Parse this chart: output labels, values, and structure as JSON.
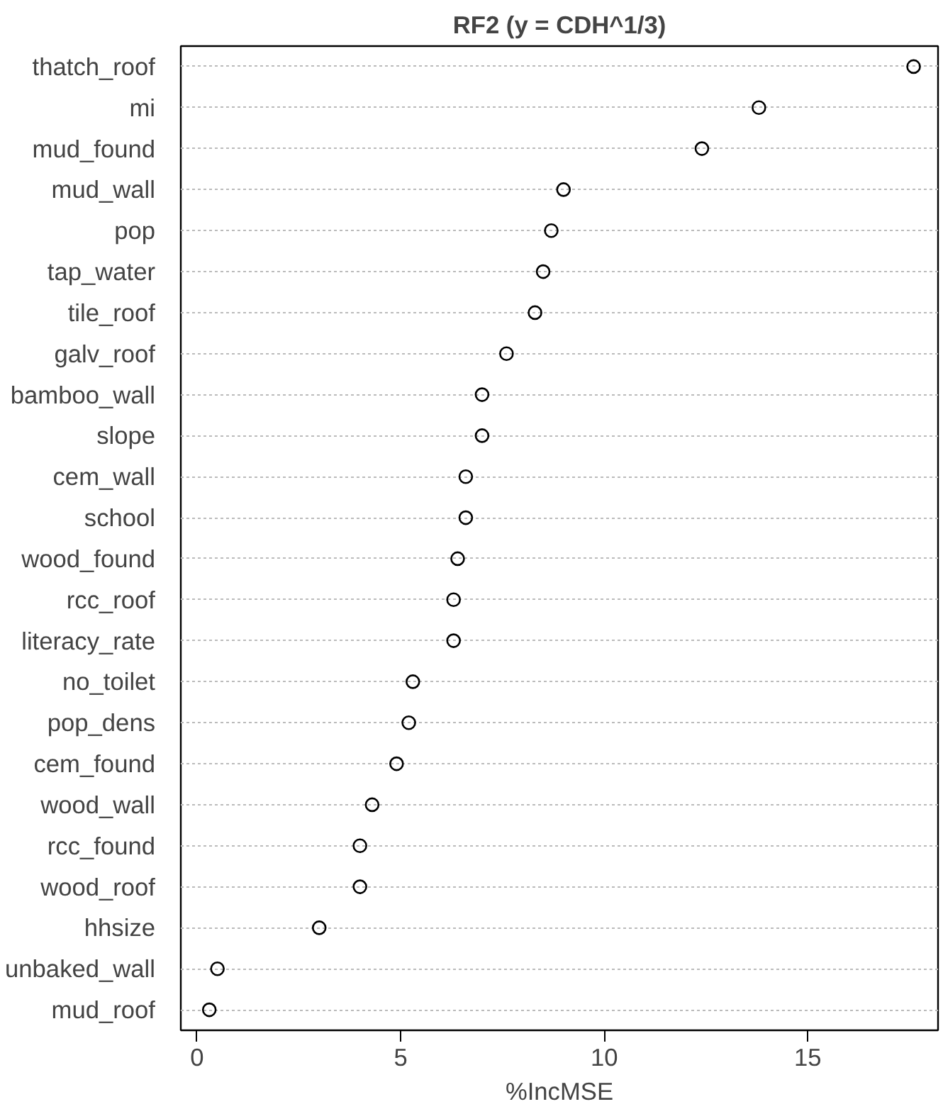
{
  "chart_data": {
    "type": "scatter",
    "title": "RF2 (y = CDH^1/3)",
    "xlabel": "%IncMSE",
    "orientation": "horizontal",
    "categories": [
      "thatch_roof",
      "mi",
      "mud_found",
      "mud_wall",
      "pop",
      "tap_water",
      "tile_roof",
      "galv_roof",
      "bamboo_wall",
      "slope",
      "cem_wall",
      "school",
      "wood_found",
      "rcc_roof",
      "literacy_rate",
      "no_toilet",
      "pop_dens",
      "cem_found",
      "wood_wall",
      "rcc_found",
      "wood_roof",
      "hhsize",
      "unbaked_wall",
      "mud_roof"
    ],
    "series": [
      {
        "color": "#000000",
        "values": [
          17.6,
          13.8,
          12.4,
          9.0,
          8.7,
          8.5,
          8.3,
          7.6,
          7.0,
          7.0,
          6.6,
          6.6,
          6.4,
          6.3,
          6.3,
          5.3,
          5.2,
          4.9,
          4.3,
          4.0,
          4.0,
          3.0,
          0.5,
          0.3
        ]
      }
    ],
    "xlim": [
      -0.4,
      18.2
    ],
    "xticks": [
      0,
      5,
      10,
      15
    ],
    "grid": "y",
    "marker": "circle"
  }
}
